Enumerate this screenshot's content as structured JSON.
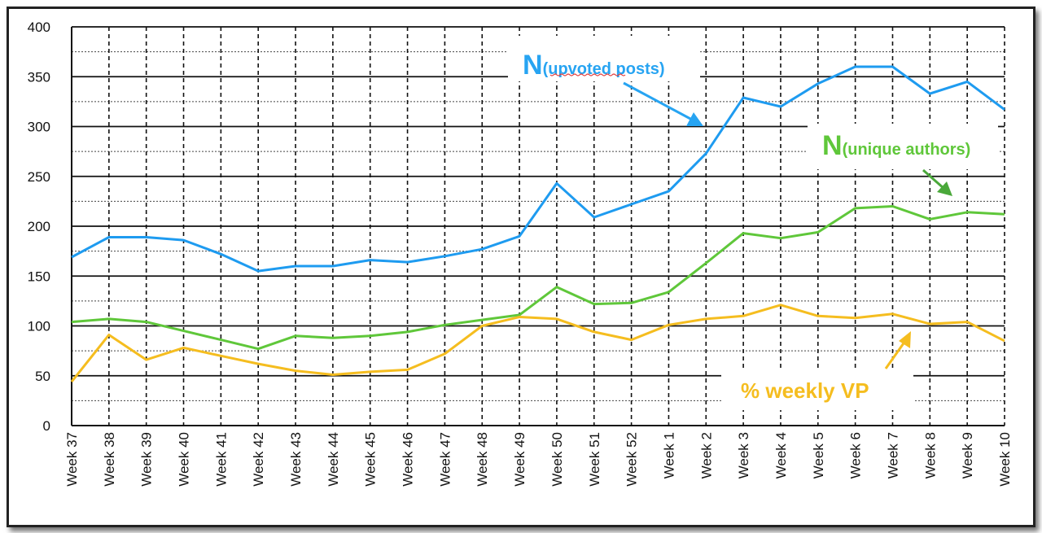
{
  "chart_data": {
    "type": "line",
    "categories": [
      "Week 37",
      "Week 38",
      "Week 39",
      "Week 40",
      "Week 41",
      "Week 42",
      "Week 43",
      "Week 44",
      "Week 45",
      "Week 46",
      "Week 47",
      "Week 48",
      "Week 49",
      "Week 50",
      "Week 51",
      "Week 52",
      "Week 1",
      "Week 2",
      "Week 3",
      "Week 4",
      "Week 5",
      "Week 6",
      "Week 7",
      "Week 8",
      "Week 9",
      "Week 10"
    ],
    "ylim": [
      0,
      400
    ],
    "yticks": [
      0,
      50,
      100,
      150,
      200,
      250,
      300,
      350,
      400
    ],
    "grid": true,
    "series": [
      {
        "name": "N(upvoted posts)",
        "color": "#1e9bf0",
        "values": [
          169,
          189,
          189,
          186,
          172,
          155,
          160,
          160,
          166,
          164,
          170,
          177,
          190,
          243,
          209,
          222,
          235,
          273,
          329,
          320,
          343,
          360,
          360,
          333,
          345,
          317
        ]
      },
      {
        "name": "N(unique authors)",
        "color": "#5fc73a",
        "values": [
          104,
          107,
          104,
          95,
          86,
          77,
          90,
          88,
          90,
          94,
          101,
          106,
          111,
          139,
          122,
          123,
          134,
          163,
          193,
          188,
          194,
          218,
          220,
          207,
          214,
          212
        ]
      },
      {
        "name": "% weekly VP",
        "color": "#f5bd1f",
        "values": [
          44,
          91,
          66,
          78,
          70,
          62,
          55,
          51,
          54,
          56,
          72,
          100,
          109,
          107,
          94,
          86,
          101,
          107,
          110,
          121,
          110,
          108,
          112,
          102,
          104,
          85
        ]
      }
    ]
  },
  "annotations": {
    "upvoted": {
      "big": "N",
      "small": "(upvoted posts)"
    },
    "authors": {
      "big": "N",
      "small": "(unique authors)"
    },
    "vp": {
      "text": "% weekly VP"
    }
  }
}
